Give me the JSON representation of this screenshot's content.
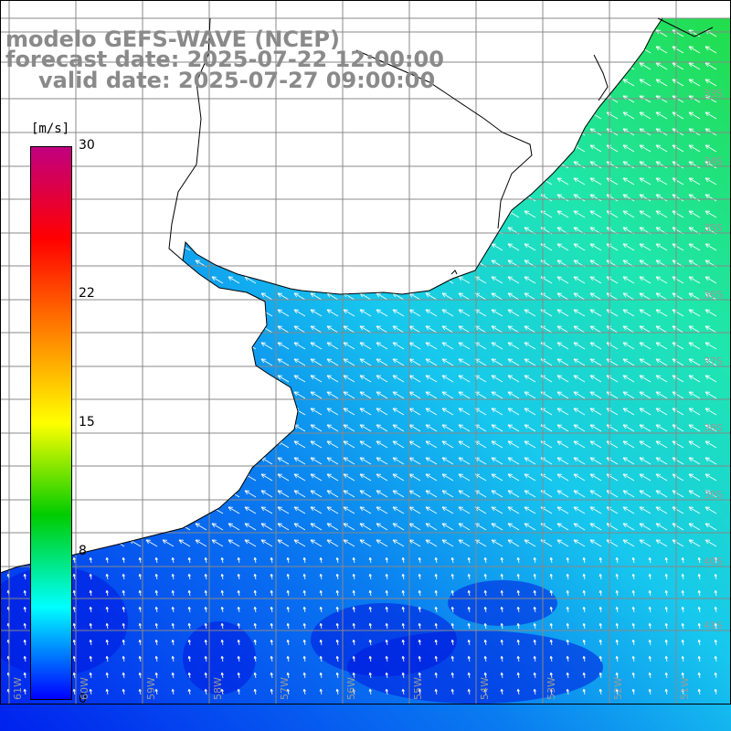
{
  "title": {
    "line1": "modelo GEFS-WAVE (NCEP)",
    "line2": "forecast date: 2025-07-22 12:00:00",
    "line3": "valid date: 2025-07-27 09:00:00"
  },
  "colorbar": {
    "units": "[m/s]",
    "ticks": [
      "30",
      "22",
      "15",
      "8",
      "0"
    ],
    "tick_values": [
      30,
      22,
      15,
      8,
      0
    ],
    "min": 0,
    "max": 30,
    "stops": [
      "#0000ff",
      "#00ffff",
      "#00cc00",
      "#ffff00",
      "#ff8000",
      "#ff0000",
      "#c00080"
    ]
  },
  "lon_labels": [
    "61W",
    "60W",
    "59W",
    "58W",
    "57W",
    "56W",
    "55W",
    "54W",
    "53W",
    "52W",
    "51W"
  ],
  "lat_labels": [
    "33S",
    "34S",
    "35S",
    "36S",
    "37S",
    "38S",
    "39S",
    "40S",
    "41S"
  ],
  "colors": {
    "title": "#8a8a8a",
    "land": "#ffffff",
    "coast": "#000000",
    "grid": "#9a9a9a",
    "arrows": "#ffffff"
  }
}
